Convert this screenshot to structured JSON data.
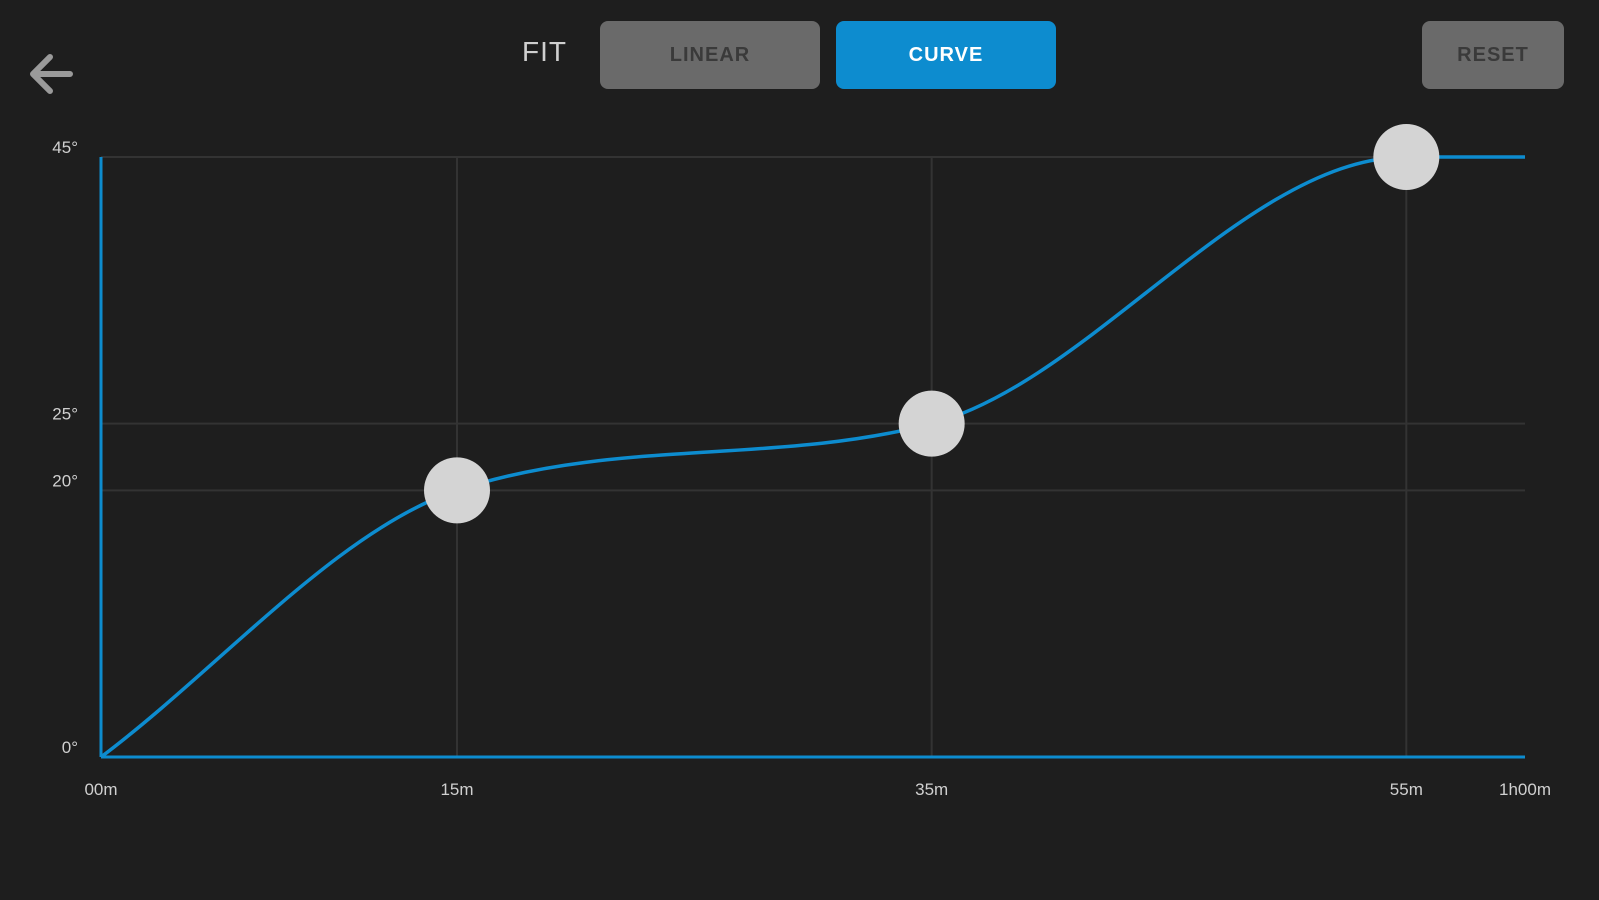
{
  "toolbar": {
    "fit_label": "FIT",
    "linear_label": "LINEAR",
    "curve_label": "CURVE",
    "reset_label": "RESET",
    "selected_fit": "CURVE",
    "back_icon": "arrow-left-icon"
  },
  "colors": {
    "background": "#1e1e1e",
    "accent": "#0d8ccf",
    "button_inactive": "#6a6a6a",
    "grid": "#333333",
    "handle": "#d4d4d4"
  },
  "chart_data": {
    "type": "line",
    "curve": "smooth",
    "x_unit": "minutes",
    "y_unit": "degrees",
    "xlim": [
      0,
      60
    ],
    "ylim": [
      0,
      45
    ],
    "x_ticks": [
      {
        "value": 0,
        "label": "00m"
      },
      {
        "value": 15,
        "label": "15m"
      },
      {
        "value": 35,
        "label": "35m"
      },
      {
        "value": 55,
        "label": "55m"
      },
      {
        "value": 60,
        "label": "1h00m"
      }
    ],
    "y_ticks": [
      {
        "value": 0,
        "label": "0°"
      },
      {
        "value": 20,
        "label": "20°"
      },
      {
        "value": 25,
        "label": "25°"
      },
      {
        "value": 45,
        "label": "45°"
      }
    ],
    "points": [
      {
        "x": 0,
        "y": 0
      },
      {
        "x": 15,
        "y": 20
      },
      {
        "x": 35,
        "y": 25
      },
      {
        "x": 55,
        "y": 45
      },
      {
        "x": 60,
        "y": 45
      }
    ],
    "handles": [
      {
        "x": 15,
        "y": 20
      },
      {
        "x": 35,
        "y": 25
      },
      {
        "x": 55,
        "y": 45
      }
    ]
  }
}
